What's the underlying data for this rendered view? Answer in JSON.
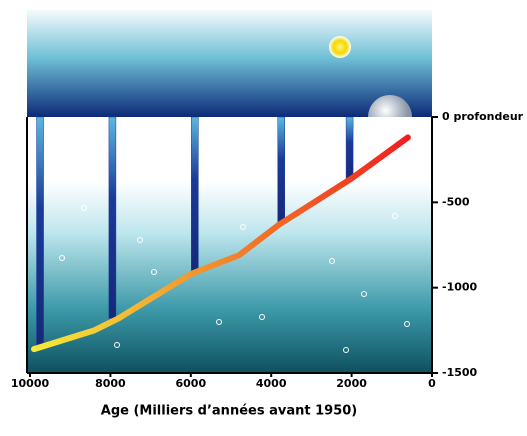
{
  "chart_data": {
    "type": "line",
    "x_label": "Age (Milliers d’années avant 1950)",
    "x": [
      9900,
      8400,
      7800,
      6000,
      4800,
      3800,
      2000,
      600
    ],
    "values": [
      -1360,
      -1250,
      -1180,
      -920,
      -810,
      -630,
      -360,
      -120
    ],
    "color_start": "#f5ea3a",
    "color_end": "#f01e1e",
    "pillars": {
      "x": [
        9750,
        7950,
        5900,
        3750,
        2050
      ],
      "values": [
        -1340,
        -1180,
        -910,
        -620,
        -370
      ],
      "color": "#1a3a9a"
    },
    "xlim": [
      10000,
      0
    ],
    "xticks": [
      10000,
      8000,
      6000,
      4000,
      2000,
      0
    ],
    "ylim": [
      -1500,
      0
    ],
    "yticks": [
      {
        "value": 0,
        "label": "0 profondeur"
      },
      -500,
      -1000,
      -1500
    ]
  }
}
